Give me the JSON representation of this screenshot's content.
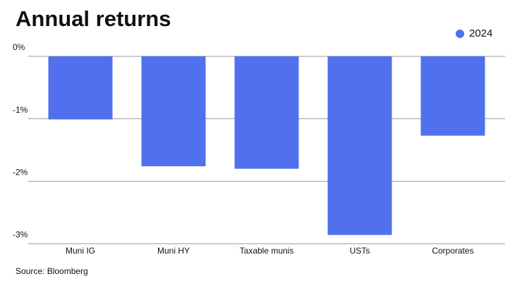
{
  "chart_data": {
    "type": "bar",
    "title": "Annual returns",
    "categories": [
      "Muni IG",
      "Muni HY",
      "Taxable munis",
      "USTs",
      "Corporates"
    ],
    "series": [
      {
        "name": "2024",
        "color": "#5070ee",
        "values": [
          -1.01,
          -1.76,
          -1.8,
          -2.86,
          -1.27
        ]
      }
    ],
    "ylim": [
      -3,
      0
    ],
    "yticks": [
      {
        "value": 0,
        "label": "0%"
      },
      {
        "value": -1,
        "label": "-1%"
      },
      {
        "value": -2,
        "label": "-2%"
      },
      {
        "value": -3,
        "label": "-3%"
      }
    ],
    "grid": true,
    "legend": "top-right",
    "source": "Source: Bloomberg"
  }
}
